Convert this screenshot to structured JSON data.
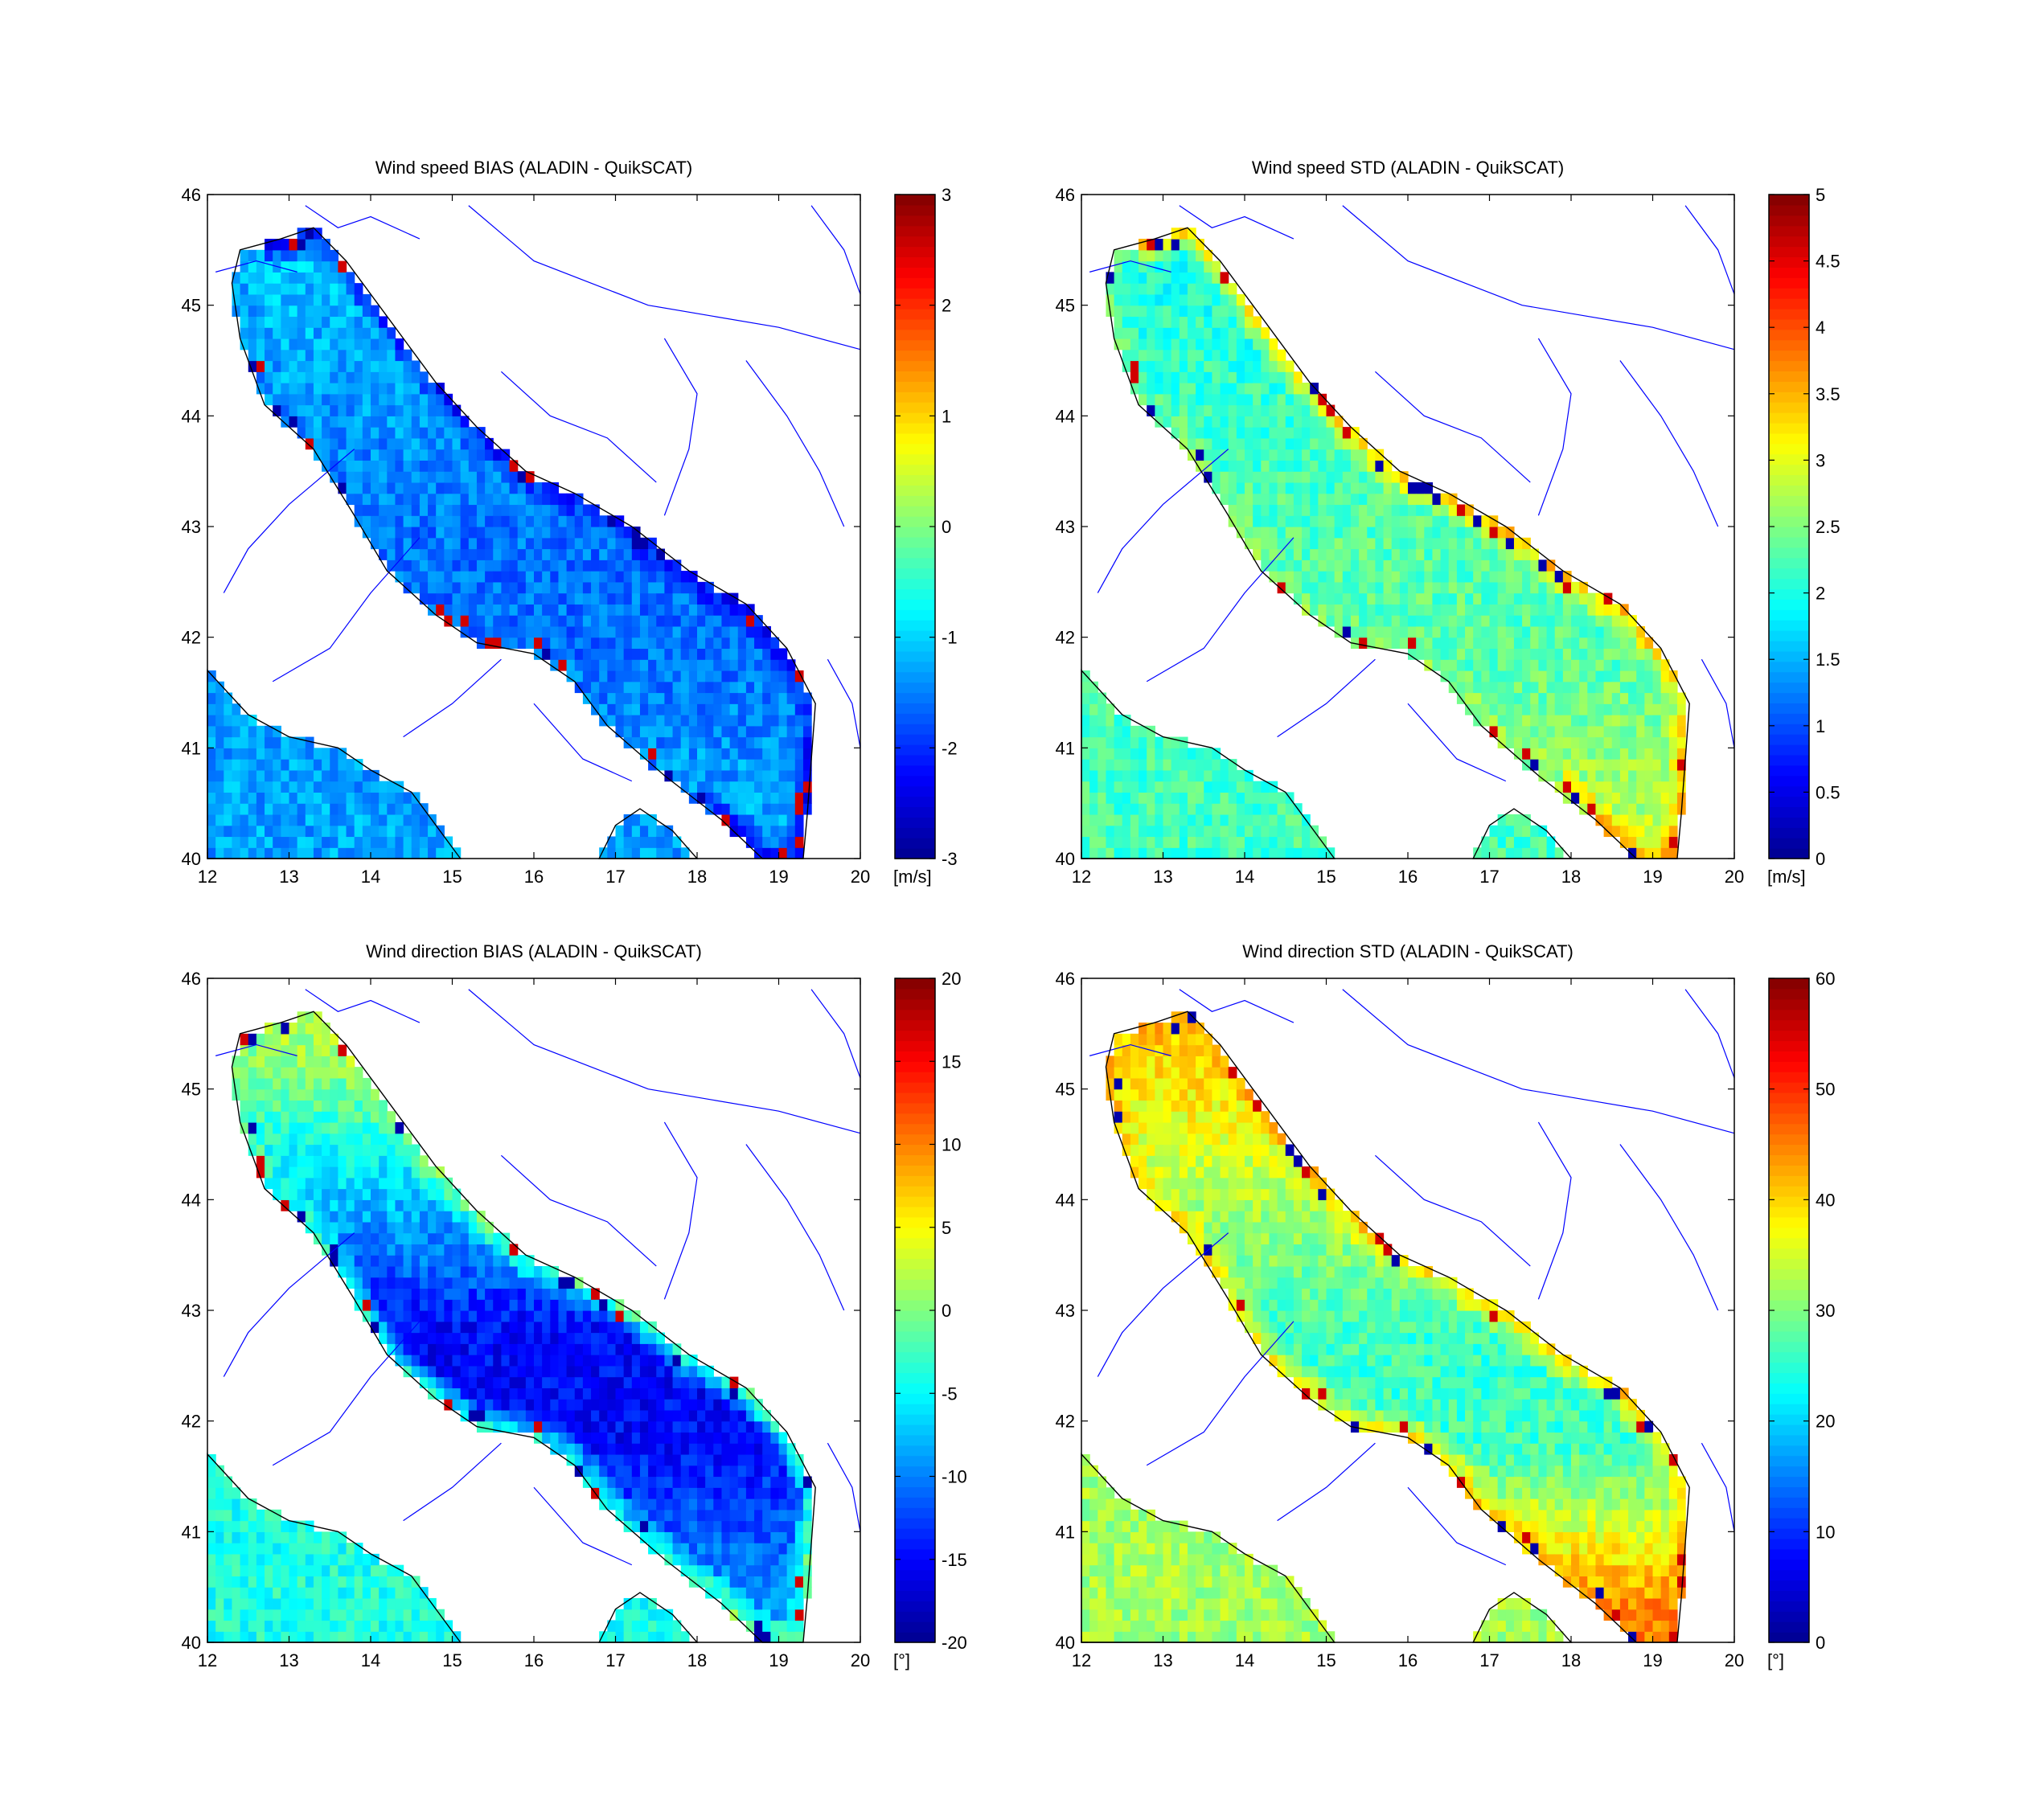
{
  "figure": {
    "colormap": "jet",
    "colormap_stops": [
      "#00008f",
      "#0000ff",
      "#0080ff",
      "#00ffff",
      "#80ff80",
      "#ffff00",
      "#ff8000",
      "#ff0000",
      "#800000"
    ],
    "land_color": "#ffffff",
    "coastline_color": "#000000",
    "river_color": "#0000ff"
  },
  "chart_data": [
    {
      "type": "heatmap",
      "title": "Wind speed BIAS (ALADIN - QuikSCAT)",
      "xlim": [
        12,
        20
      ],
      "ylim": [
        40,
        46
      ],
      "xticks": [
        "12",
        "13",
        "14",
        "15",
        "16",
        "17",
        "18",
        "19",
        "20"
      ],
      "yticks": [
        "40",
        "41",
        "42",
        "43",
        "44",
        "45",
        "46"
      ],
      "colorbar": {
        "min": -3,
        "max": 3,
        "ticks": [
          "-3",
          "-2",
          "-1",
          "0",
          "1",
          "2",
          "3"
        ],
        "unit": "[m/s]"
      },
      "field": {
        "typical": -1.3,
        "north": -1.1,
        "central": -1.6,
        "south": -1.2,
        "east_coast": -2.5,
        "west_coast": -1.5
      }
    },
    {
      "type": "heatmap",
      "title": "Wind speed STD (ALADIN - QuikSCAT)",
      "xlim": [
        12,
        20
      ],
      "ylim": [
        40,
        46
      ],
      "xticks": [
        "12",
        "13",
        "14",
        "15",
        "16",
        "17",
        "18",
        "19",
        "20"
      ],
      "yticks": [
        "40",
        "41",
        "42",
        "43",
        "44",
        "45",
        "46"
      ],
      "colorbar": {
        "min": 0,
        "max": 5,
        "ticks": [
          "0",
          "0.5",
          "1",
          "1.5",
          "2",
          "2.5",
          "3",
          "3.5",
          "4",
          "4.5",
          "5"
        ],
        "unit": "[m/s]"
      },
      "field": {
        "typical": 2.2,
        "north": 2.0,
        "central": 2.3,
        "south": 2.8,
        "east_coast": 3.8,
        "west_coast": 2.6
      }
    },
    {
      "type": "heatmap",
      "title": "Wind direction BIAS (ALADIN - QuikSCAT)",
      "xlim": [
        12,
        20
      ],
      "ylim": [
        40,
        46
      ],
      "xticks": [
        "12",
        "13",
        "14",
        "15",
        "16",
        "17",
        "18",
        "19",
        "20"
      ],
      "yticks": [
        "40",
        "41",
        "42",
        "43",
        "44",
        "45",
        "46"
      ],
      "colorbar": {
        "min": -20,
        "max": 20,
        "ticks": [
          "-20",
          "-15",
          "-10",
          "-5",
          "0",
          "5",
          "10",
          "15",
          "20"
        ],
        "unit": "[°]"
      },
      "field": {
        "typical": -4,
        "north": 1,
        "central": -15,
        "south": -8,
        "east_coast": 2,
        "west_coast": -1
      }
    },
    {
      "type": "heatmap",
      "title": "Wind direction STD (ALADIN - QuikSCAT)",
      "xlim": [
        12,
        20
      ],
      "ylim": [
        40,
        46
      ],
      "xticks": [
        "12",
        "13",
        "14",
        "15",
        "16",
        "17",
        "18",
        "19",
        "20"
      ],
      "yticks": [
        "40",
        "41",
        "42",
        "43",
        "44",
        "45",
        "46"
      ],
      "colorbar": {
        "min": 0,
        "max": 60,
        "ticks": [
          "0",
          "10",
          "20",
          "30",
          "40",
          "50",
          "60"
        ],
        "unit": "[°]"
      },
      "field": {
        "typical": 32,
        "north": 40,
        "central": 26,
        "south": 46,
        "east_coast": 44,
        "west_coast": 42
      }
    }
  ]
}
